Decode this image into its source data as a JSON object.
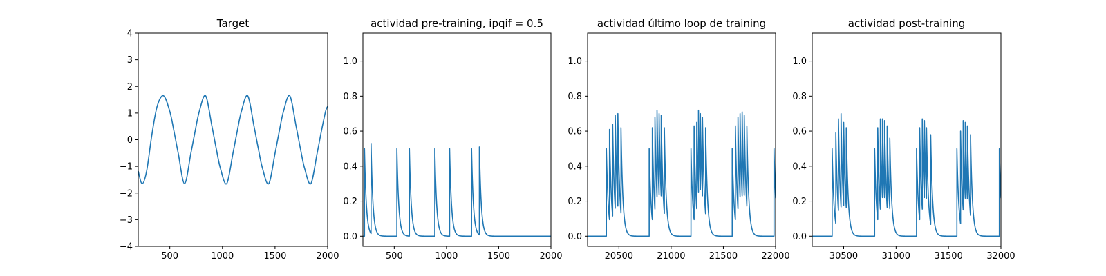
{
  "line_color": "#1f77b4",
  "chart_data": [
    {
      "type": "line",
      "title": "Target",
      "xlabel": "",
      "ylabel": "",
      "xlim": [
        200,
        2000
      ],
      "ylim": [
        -4,
        4
      ],
      "xticks": [
        500,
        1000,
        1500,
        2000
      ],
      "yticks": [
        -4,
        -3,
        -2,
        -1,
        0,
        1,
        2,
        3,
        4
      ],
      "xtick_labels": [
        "500",
        "1000",
        "1500",
        "2000"
      ],
      "ytick_labels": [
        "−4",
        "−3",
        "−2",
        "−1",
        "0",
        "1",
        "2",
        "3",
        "4"
      ],
      "series": [
        {
          "x": [
            200,
            237,
            280,
            330,
            380,
            440,
            500,
            540,
            580,
            640,
            700,
            740,
            780,
            840,
            900,
            940,
            980,
            1040,
            1100,
            1140,
            1180,
            1240,
            1300,
            1340,
            1380,
            1440,
            1500,
            1540,
            1580,
            1640,
            1700,
            1740,
            1780,
            1840,
            1900,
            1940,
            1980,
            2000
          ],
          "y": [
            -1.18,
            -1.65,
            -1.17,
            0.2,
            1.26,
            1.65,
            1.06,
            0.31,
            -0.51,
            -1.65,
            -0.51,
            0.31,
            1.06,
            1.65,
            0.51,
            -0.31,
            -1.06,
            -1.65,
            -0.51,
            0.31,
            1.06,
            1.65,
            0.51,
            -0.31,
            -1.06,
            -1.65,
            -0.51,
            0.31,
            1.06,
            1.65,
            0.51,
            -0.31,
            -1.06,
            -1.65,
            -0.51,
            0.31,
            1.06,
            1.25
          ]
        }
      ]
    },
    {
      "type": "line",
      "title": "actividad pre-training, ipqif = 0.5",
      "xlabel": "",
      "ylabel": "",
      "xlim": [
        200,
        2000
      ],
      "ylim": [
        -0.058,
        1.16
      ],
      "xticks": [
        500,
        1000,
        1500,
        2000
      ],
      "yticks": [
        0.0,
        0.2,
        0.4,
        0.6,
        0.8,
        1.0
      ],
      "xtick_labels": [
        "500",
        "1000",
        "1500",
        "2000"
      ],
      "ytick_labels": [
        "0.0",
        "0.2",
        "0.4",
        "0.6",
        "0.8",
        "1.0"
      ],
      "series": [
        {
          "start": 200,
          "end": 2000,
          "baseline": 0,
          "tau": 18,
          "spikes": [
            [
              215,
              0.5
            ],
            [
              278,
              0.53
            ],
            [
              525,
              0.5
            ],
            [
              645,
              0.5
            ],
            [
              888,
              0.5
            ],
            [
              1030,
              0.5
            ],
            [
              1240,
              0.5
            ],
            [
              1315,
              0.51
            ]
          ]
        }
      ]
    },
    {
      "type": "line",
      "title": "actividad último loop de training",
      "xlabel": "",
      "ylabel": "",
      "xlim": [
        20200,
        22000
      ],
      "ylim": [
        -0.058,
        1.16
      ],
      "xticks": [
        20500,
        21000,
        21500,
        22000
      ],
      "yticks": [
        0.0,
        0.2,
        0.4,
        0.6,
        0.8,
        1.0
      ],
      "xtick_labels": [
        "20500",
        "21000",
        "21500",
        "22000"
      ],
      "ytick_labels": [
        "0.0",
        "0.2",
        "0.4",
        "0.6",
        "0.8",
        "1.0"
      ],
      "series": [
        {
          "start": 20200,
          "end": 22000,
          "baseline": 0,
          "tau": 18,
          "spikes": [
            [
              20380,
              0.5
            ],
            [
              20410,
              0.61
            ],
            [
              20440,
              0.64
            ],
            [
              20465,
              0.69
            ],
            [
              20490,
              0.7
            ],
            [
              20520,
              0.62
            ],
            [
              20790,
              0.5
            ],
            [
              20820,
              0.62
            ],
            [
              20845,
              0.68
            ],
            [
              20865,
              0.72
            ],
            [
              20885,
              0.7
            ],
            [
              20905,
              0.69
            ],
            [
              20935,
              0.62
            ],
            [
              21190,
              0.5
            ],
            [
              21220,
              0.63
            ],
            [
              21245,
              0.65
            ],
            [
              21262,
              0.72
            ],
            [
              21280,
              0.7
            ],
            [
              21300,
              0.68
            ],
            [
              21330,
              0.62
            ],
            [
              21585,
              0.5
            ],
            [
              21615,
              0.63
            ],
            [
              21640,
              0.68
            ],
            [
              21660,
              0.7
            ],
            [
              21680,
              0.71
            ],
            [
              21700,
              0.69
            ],
            [
              21725,
              0.63
            ],
            [
              21985,
              0.5
            ]
          ]
        }
      ]
    },
    {
      "type": "line",
      "title": "actividad post-training",
      "xlabel": "",
      "ylabel": "",
      "xlim": [
        30200,
        32000
      ],
      "ylim": [
        -0.058,
        1.16
      ],
      "xticks": [
        30500,
        31000,
        31500,
        32000
      ],
      "yticks": [
        0.0,
        0.2,
        0.4,
        0.6,
        0.8,
        1.0
      ],
      "xtick_labels": [
        "30500",
        "31000",
        "31500",
        "32000"
      ],
      "ytick_labels": [
        "0.0",
        "0.2",
        "0.4",
        "0.6",
        "0.8",
        "1.0"
      ],
      "series": [
        {
          "start": 30200,
          "end": 32000,
          "baseline": 0,
          "tau": 18,
          "spikes": [
            [
              30390,
              0.5
            ],
            [
              30425,
              0.59
            ],
            [
              30450,
              0.67
            ],
            [
              30475,
              0.7
            ],
            [
              30500,
              0.65
            ],
            [
              30525,
              0.62
            ],
            [
              30795,
              0.5
            ],
            [
              30825,
              0.62
            ],
            [
              30850,
              0.67
            ],
            [
              30870,
              0.67
            ],
            [
              30890,
              0.66
            ],
            [
              30915,
              0.63
            ],
            [
              30940,
              0.56
            ],
            [
              31195,
              0.5
            ],
            [
              31225,
              0.62
            ],
            [
              31250,
              0.67
            ],
            [
              31270,
              0.66
            ],
            [
              31290,
              0.62
            ],
            [
              31330,
              0.58
            ],
            [
              31580,
              0.5
            ],
            [
              31615,
              0.6
            ],
            [
              31640,
              0.66
            ],
            [
              31660,
              0.65
            ],
            [
              31680,
              0.63
            ],
            [
              31710,
              0.58
            ],
            [
              31985,
              0.5
            ]
          ]
        }
      ]
    }
  ]
}
